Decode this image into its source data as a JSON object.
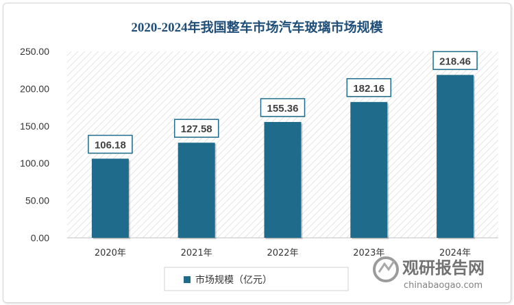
{
  "chart_data": {
    "type": "bar",
    "title": "2020-2024年我国整车市场汽车玻璃市场规模",
    "categories": [
      "2020年",
      "2021年",
      "2022年",
      "2023年",
      "2024年"
    ],
    "series": [
      {
        "name": "市场规模（亿元）",
        "values": [
          106.18,
          127.58,
          155.36,
          182.16,
          218.46
        ],
        "color": "#1e6b8c"
      }
    ],
    "data_labels": [
      "106.18",
      "127.58",
      "155.36",
      "182.16",
      "218.46"
    ],
    "ylim": [
      0,
      250
    ],
    "yticks": [
      "0.00",
      "50.00",
      "100.00",
      "150.00",
      "200.00",
      "250.00"
    ],
    "ytick_values": [
      0,
      50,
      100,
      150,
      200,
      250
    ],
    "xlabel": "",
    "ylabel": "",
    "grid": false,
    "legend_position": "bottom"
  },
  "watermark": {
    "logo_text": "观研报告网",
    "url_text": "chinabaogao.com"
  }
}
